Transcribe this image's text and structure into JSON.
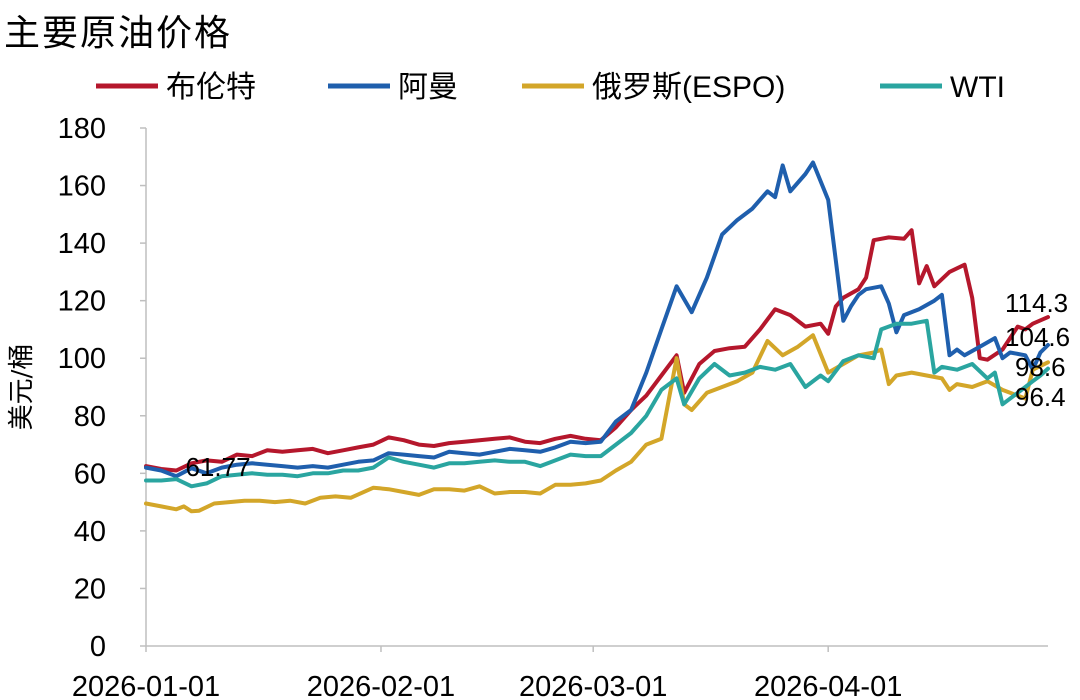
{
  "chart_data": {
    "type": "line",
    "title": "主要原油价格",
    "ylabel": "美元/桶",
    "xlabel": "",
    "ylim": [
      0,
      180
    ],
    "yticks": [
      0,
      20,
      40,
      60,
      80,
      100,
      120,
      140,
      160,
      180
    ],
    "xlim": [
      "2026-01-01",
      "2026-04-30"
    ],
    "xticks": [
      "2026-01-01",
      "2026-02-01",
      "2026-03-01",
      "2026-04-01"
    ],
    "legend_position": "top",
    "grid": false,
    "series": [
      {
        "name": "布伦特",
        "color": "#b5172c",
        "end_label": "114.3",
        "points": [
          [
            "2026-01-01",
            62.5
          ],
          [
            "2026-01-03",
            61.5
          ],
          [
            "2026-01-05",
            61.0
          ],
          [
            "2026-01-07",
            63.5
          ],
          [
            "2026-01-09",
            64.5
          ],
          [
            "2026-01-11",
            64.0
          ],
          [
            "2026-01-13",
            66.5
          ],
          [
            "2026-01-15",
            66.0
          ],
          [
            "2026-01-17",
            68.0
          ],
          [
            "2026-01-19",
            67.5
          ],
          [
            "2026-01-21",
            68.0
          ],
          [
            "2026-01-23",
            68.5
          ],
          [
            "2026-01-25",
            67.0
          ],
          [
            "2026-01-27",
            68.0
          ],
          [
            "2026-01-29",
            69.0
          ],
          [
            "2026-01-31",
            70.0
          ],
          [
            "2026-02-02",
            72.5
          ],
          [
            "2026-02-04",
            71.5
          ],
          [
            "2026-02-06",
            70.0
          ],
          [
            "2026-02-08",
            69.5
          ],
          [
            "2026-02-10",
            70.5
          ],
          [
            "2026-02-12",
            71.0
          ],
          [
            "2026-02-14",
            71.5
          ],
          [
            "2026-02-16",
            72.0
          ],
          [
            "2026-02-18",
            72.5
          ],
          [
            "2026-02-20",
            71.0
          ],
          [
            "2026-02-22",
            70.5
          ],
          [
            "2026-02-24",
            72.0
          ],
          [
            "2026-02-26",
            73.0
          ],
          [
            "2026-02-28",
            72.0
          ],
          [
            "2026-03-02",
            71.5
          ],
          [
            "2026-03-04",
            76.0
          ],
          [
            "2026-03-06",
            82.0
          ],
          [
            "2026-03-08",
            87.0
          ],
          [
            "2026-03-10",
            94.0
          ],
          [
            "2026-03-12",
            101.0
          ],
          [
            "2026-03-13",
            88.0
          ],
          [
            "2026-03-15",
            98.0
          ],
          [
            "2026-03-17",
            102.5
          ],
          [
            "2026-03-19",
            103.5
          ],
          [
            "2026-03-21",
            104.0
          ],
          [
            "2026-03-23",
            110.0
          ],
          [
            "2026-03-25",
            117.0
          ],
          [
            "2026-03-27",
            115.0
          ],
          [
            "2026-03-29",
            111.0
          ],
          [
            "2026-03-31",
            112.0
          ],
          [
            "2026-04-01",
            108.5
          ],
          [
            "2026-04-02",
            118.0
          ],
          [
            "2026-04-03",
            121.0
          ],
          [
            "2026-04-05",
            124.0
          ],
          [
            "2026-04-06",
            128.0
          ],
          [
            "2026-04-07",
            141.0
          ],
          [
            "2026-04-09",
            142.0
          ],
          [
            "2026-04-11",
            141.5
          ],
          [
            "2026-04-12",
            144.5
          ],
          [
            "2026-04-13",
            126.0
          ],
          [
            "2026-04-14",
            132.0
          ],
          [
            "2026-04-15",
            125.0
          ],
          [
            "2026-04-17",
            130.0
          ],
          [
            "2026-04-19",
            132.5
          ],
          [
            "2026-04-20",
            121.0
          ],
          [
            "2026-04-21",
            100.0
          ],
          [
            "2026-04-22",
            99.5
          ],
          [
            "2026-04-24",
            103.0
          ],
          [
            "2026-04-26",
            111.0
          ],
          [
            "2026-04-27",
            110.0
          ],
          [
            "2026-04-28",
            112.0
          ],
          [
            "2026-04-30",
            114.3
          ]
        ]
      },
      {
        "name": "阿曼",
        "color": "#1f5fad",
        "end_label": "104.6",
        "points": [
          [
            "2026-01-01",
            62.0
          ],
          [
            "2026-01-03",
            61.0
          ],
          [
            "2026-01-05",
            59.0
          ],
          [
            "2026-01-07",
            61.77
          ],
          [
            "2026-01-09",
            60.0
          ],
          [
            "2026-01-11",
            62.0
          ],
          [
            "2026-01-13",
            63.0
          ],
          [
            "2026-01-15",
            63.5
          ],
          [
            "2026-01-17",
            63.0
          ],
          [
            "2026-01-19",
            62.5
          ],
          [
            "2026-01-21",
            62.0
          ],
          [
            "2026-01-23",
            62.5
          ],
          [
            "2026-01-25",
            62.0
          ],
          [
            "2026-01-27",
            63.0
          ],
          [
            "2026-01-29",
            64.0
          ],
          [
            "2026-01-31",
            64.5
          ],
          [
            "2026-02-02",
            67.0
          ],
          [
            "2026-02-04",
            66.5
          ],
          [
            "2026-02-06",
            66.0
          ],
          [
            "2026-02-08",
            65.5
          ],
          [
            "2026-02-10",
            67.5
          ],
          [
            "2026-02-12",
            67.0
          ],
          [
            "2026-02-14",
            66.5
          ],
          [
            "2026-02-16",
            67.5
          ],
          [
            "2026-02-18",
            68.5
          ],
          [
            "2026-02-20",
            68.0
          ],
          [
            "2026-02-22",
            67.5
          ],
          [
            "2026-02-24",
            69.0
          ],
          [
            "2026-02-26",
            71.0
          ],
          [
            "2026-02-28",
            70.5
          ],
          [
            "2026-03-02",
            71.0
          ],
          [
            "2026-03-04",
            78.0
          ],
          [
            "2026-03-06",
            82.0
          ],
          [
            "2026-03-08",
            95.0
          ],
          [
            "2026-03-10",
            110.0
          ],
          [
            "2026-03-12",
            125.0
          ],
          [
            "2026-03-14",
            116.0
          ],
          [
            "2026-03-16",
            128.0
          ],
          [
            "2026-03-18",
            143.0
          ],
          [
            "2026-03-20",
            148.0
          ],
          [
            "2026-03-22",
            152.0
          ],
          [
            "2026-03-24",
            158.0
          ],
          [
            "2026-03-25",
            156.0
          ],
          [
            "2026-03-26",
            167.0
          ],
          [
            "2026-03-27",
            158.0
          ],
          [
            "2026-03-29",
            164.0
          ],
          [
            "2026-03-30",
            168.0
          ],
          [
            "2026-04-01",
            155.0
          ],
          [
            "2026-04-02",
            134.0
          ],
          [
            "2026-04-03",
            113.0
          ],
          [
            "2026-04-04",
            118.0
          ],
          [
            "2026-04-05",
            122.0
          ],
          [
            "2026-04-06",
            124.0
          ],
          [
            "2026-04-08",
            125.0
          ],
          [
            "2026-04-09",
            119.0
          ],
          [
            "2026-04-10",
            109.0
          ],
          [
            "2026-04-11",
            115.0
          ],
          [
            "2026-04-13",
            117.0
          ],
          [
            "2026-04-15",
            120.0
          ],
          [
            "2026-04-16",
            122.0
          ],
          [
            "2026-04-17",
            101.0
          ],
          [
            "2026-04-18",
            103.0
          ],
          [
            "2026-04-19",
            101.0
          ],
          [
            "2026-04-21",
            104.0
          ],
          [
            "2026-04-23",
            107.0
          ],
          [
            "2026-04-24",
            100.0
          ],
          [
            "2026-04-25",
            102.0
          ],
          [
            "2026-04-27",
            101.0
          ],
          [
            "2026-04-28",
            96.0
          ],
          [
            "2026-04-29",
            102.0
          ],
          [
            "2026-04-30",
            104.6
          ]
        ]
      },
      {
        "name": "俄罗斯(ESPO)",
        "color": "#d3a629",
        "end_label": "98.6",
        "points": [
          [
            "2026-01-01",
            49.5
          ],
          [
            "2026-01-03",
            48.5
          ],
          [
            "2026-01-05",
            47.5
          ],
          [
            "2026-01-06",
            48.5
          ],
          [
            "2026-01-07",
            46.8
          ],
          [
            "2026-01-08",
            47.0
          ],
          [
            "2026-01-10",
            49.5
          ],
          [
            "2026-01-12",
            50.0
          ],
          [
            "2026-01-14",
            50.5
          ],
          [
            "2026-01-16",
            50.5
          ],
          [
            "2026-01-18",
            50.0
          ],
          [
            "2026-01-20",
            50.5
          ],
          [
            "2026-01-22",
            49.5
          ],
          [
            "2026-01-24",
            51.5
          ],
          [
            "2026-01-26",
            52.0
          ],
          [
            "2026-01-28",
            51.5
          ],
          [
            "2026-01-31",
            55.0
          ],
          [
            "2026-02-02",
            54.5
          ],
          [
            "2026-02-04",
            53.5
          ],
          [
            "2026-02-06",
            52.5
          ],
          [
            "2026-02-08",
            54.5
          ],
          [
            "2026-02-10",
            54.5
          ],
          [
            "2026-02-12",
            54.0
          ],
          [
            "2026-02-14",
            55.5
          ],
          [
            "2026-02-16",
            53.0
          ],
          [
            "2026-02-18",
            53.5
          ],
          [
            "2026-02-20",
            53.5
          ],
          [
            "2026-02-22",
            53.0
          ],
          [
            "2026-02-24",
            56.0
          ],
          [
            "2026-02-26",
            56.0
          ],
          [
            "2026-02-28",
            56.5
          ],
          [
            "2026-03-02",
            57.5
          ],
          [
            "2026-03-04",
            61.0
          ],
          [
            "2026-03-06",
            64.0
          ],
          [
            "2026-03-08",
            70.0
          ],
          [
            "2026-03-10",
            72.0
          ],
          [
            "2026-03-12",
            100.0
          ],
          [
            "2026-03-13",
            84.0
          ],
          [
            "2026-03-14",
            82.0
          ],
          [
            "2026-03-16",
            88.0
          ],
          [
            "2026-03-18",
            90.0
          ],
          [
            "2026-03-20",
            92.0
          ],
          [
            "2026-03-22",
            95.0
          ],
          [
            "2026-03-24",
            106.0
          ],
          [
            "2026-03-26",
            101.0
          ],
          [
            "2026-03-28",
            104.0
          ],
          [
            "2026-03-30",
            108.0
          ],
          [
            "2026-04-01",
            95.0
          ],
          [
            "2026-04-03",
            98.0
          ],
          [
            "2026-04-05",
            101.0
          ],
          [
            "2026-04-07",
            102.0
          ],
          [
            "2026-04-08",
            103.0
          ],
          [
            "2026-04-09",
            91.0
          ],
          [
            "2026-04-10",
            94.0
          ],
          [
            "2026-04-12",
            95.0
          ],
          [
            "2026-04-14",
            94.0
          ],
          [
            "2026-04-16",
            93.0
          ],
          [
            "2026-04-17",
            89.0
          ],
          [
            "2026-04-18",
            91.0
          ],
          [
            "2026-04-20",
            90.0
          ],
          [
            "2026-04-22",
            92.0
          ],
          [
            "2026-04-24",
            89.0
          ],
          [
            "2026-04-26",
            87.0
          ],
          [
            "2026-04-27",
            86.0
          ],
          [
            "2026-04-28",
            96.0
          ],
          [
            "2026-04-30",
            98.6
          ]
        ]
      },
      {
        "name": "WTI",
        "color": "#2aa5a0",
        "end_label": "96.4",
        "points": [
          [
            "2026-01-01",
            57.5
          ],
          [
            "2026-01-03",
            57.5
          ],
          [
            "2026-01-05",
            58.0
          ],
          [
            "2026-01-07",
            55.5
          ],
          [
            "2026-01-09",
            56.5
          ],
          [
            "2026-01-11",
            59.0
          ],
          [
            "2026-01-13",
            59.5
          ],
          [
            "2026-01-15",
            60.0
          ],
          [
            "2026-01-17",
            59.5
          ],
          [
            "2026-01-19",
            59.5
          ],
          [
            "2026-01-21",
            59.0
          ],
          [
            "2026-01-23",
            60.0
          ],
          [
            "2026-01-25",
            60.0
          ],
          [
            "2026-01-27",
            61.0
          ],
          [
            "2026-01-29",
            61.0
          ],
          [
            "2026-01-31",
            62.0
          ],
          [
            "2026-02-02",
            65.5
          ],
          [
            "2026-02-04",
            64.0
          ],
          [
            "2026-02-06",
            63.0
          ],
          [
            "2026-02-08",
            62.0
          ],
          [
            "2026-02-10",
            63.5
          ],
          [
            "2026-02-12",
            63.5
          ],
          [
            "2026-02-14",
            64.0
          ],
          [
            "2026-02-16",
            64.5
          ],
          [
            "2026-02-18",
            64.0
          ],
          [
            "2026-02-20",
            64.0
          ],
          [
            "2026-02-22",
            62.5
          ],
          [
            "2026-02-24",
            64.5
          ],
          [
            "2026-02-26",
            66.5
          ],
          [
            "2026-02-28",
            66.0
          ],
          [
            "2026-03-02",
            66.0
          ],
          [
            "2026-03-04",
            70.0
          ],
          [
            "2026-03-06",
            74.0
          ],
          [
            "2026-03-08",
            80.0
          ],
          [
            "2026-03-10",
            89.0
          ],
          [
            "2026-03-12",
            93.0
          ],
          [
            "2026-03-13",
            84.0
          ],
          [
            "2026-03-15",
            93.0
          ],
          [
            "2026-03-17",
            98.0
          ],
          [
            "2026-03-19",
            94.0
          ],
          [
            "2026-03-21",
            95.0
          ],
          [
            "2026-03-23",
            97.0
          ],
          [
            "2026-03-25",
            96.0
          ],
          [
            "2026-03-27",
            98.0
          ],
          [
            "2026-03-29",
            90.0
          ],
          [
            "2026-03-31",
            94.0
          ],
          [
            "2026-04-01",
            92.0
          ],
          [
            "2026-04-03",
            99.0
          ],
          [
            "2026-04-05",
            101.0
          ],
          [
            "2026-04-07",
            100.0
          ],
          [
            "2026-04-08",
            110.0
          ],
          [
            "2026-04-10",
            112.0
          ],
          [
            "2026-04-12",
            112.0
          ],
          [
            "2026-04-14",
            113.0
          ],
          [
            "2026-04-15",
            95.0
          ],
          [
            "2026-04-16",
            97.0
          ],
          [
            "2026-04-18",
            96.0
          ],
          [
            "2026-04-20",
            98.0
          ],
          [
            "2026-04-22",
            93.0
          ],
          [
            "2026-04-23",
            95.0
          ],
          [
            "2026-04-24",
            84.0
          ],
          [
            "2026-04-26",
            88.0
          ],
          [
            "2026-04-27",
            90.0
          ],
          [
            "2026-04-28",
            92.0
          ],
          [
            "2026-04-29",
            94.0
          ],
          [
            "2026-04-30",
            96.4
          ]
        ]
      }
    ],
    "annotations": [
      {
        "text": "61.77",
        "x": "2026-01-07",
        "y": 61.77
      }
    ]
  }
}
